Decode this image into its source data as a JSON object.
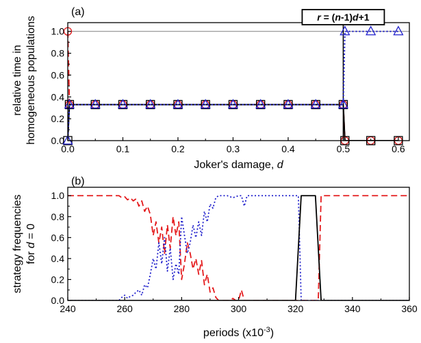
{
  "chart_data": [
    {
      "panel": "(a)",
      "type": "line",
      "xlabel": "Joker's damage, d",
      "xlabel_parts": [
        "Joker's damage, ",
        "d"
      ],
      "ylabel_lines": [
        "relative time in",
        "homogeneous populations"
      ],
      "xlim": [
        0,
        0.62
      ],
      "ylim": [
        0,
        1.08
      ],
      "xticks": [
        0.0,
        0.1,
        0.2,
        0.3,
        0.4,
        0.5,
        0.6
      ],
      "xtick_labels": [
        "0.0",
        "0.1",
        "0.2",
        "0.3",
        "0.4",
        "0.5",
        "0.6"
      ],
      "yticks": [
        0.0,
        0.2,
        0.4,
        0.6,
        0.8,
        1.0
      ],
      "ytick_labels": [
        "0.0",
        "0.2",
        "0.4",
        "0.6",
        "0.8",
        "1.0"
      ],
      "reference_lines": [
        {
          "orientation": "horizontal",
          "y": 1.0,
          "color": "#808080"
        },
        {
          "orientation": "vertical",
          "x": 0.5,
          "color": "#000000"
        }
      ],
      "annotation": {
        "x": 0.5,
        "parts": [
          "r",
          " = (",
          "n",
          "-1)",
          "d",
          "+1"
        ]
      },
      "series": [
        {
          "marker": "circle",
          "color": "#e41a1c",
          "dash": "dashed",
          "x": [
            0.0,
            0.003,
            0.05,
            0.1,
            0.15,
            0.2,
            0.25,
            0.3,
            0.35,
            0.4,
            0.45,
            0.5,
            0.503,
            0.55,
            0.6
          ],
          "y": [
            1.0,
            0.33,
            0.33,
            0.33,
            0.33,
            0.33,
            0.33,
            0.33,
            0.33,
            0.33,
            0.33,
            0.33,
            0.0,
            0.0,
            0.0
          ]
        },
        {
          "marker": "square",
          "color": "#000000",
          "dash": "solid",
          "x": [
            0.0,
            0.003,
            0.05,
            0.1,
            0.15,
            0.2,
            0.25,
            0.3,
            0.35,
            0.4,
            0.45,
            0.5,
            0.503,
            0.55,
            0.6
          ],
          "y": [
            0.0,
            0.33,
            0.33,
            0.33,
            0.33,
            0.33,
            0.33,
            0.33,
            0.33,
            0.33,
            0.33,
            0.33,
            0.0,
            0.0,
            0.0
          ]
        },
        {
          "marker": "triangle",
          "color": "#1f1fcc",
          "dash": "dotted",
          "x": [
            0.0,
            0.003,
            0.05,
            0.1,
            0.15,
            0.2,
            0.25,
            0.3,
            0.35,
            0.4,
            0.45,
            0.5,
            0.503,
            0.55,
            0.6
          ],
          "y": [
            0.0,
            0.33,
            0.33,
            0.33,
            0.33,
            0.33,
            0.33,
            0.33,
            0.33,
            0.33,
            0.33,
            0.33,
            1.0,
            1.0,
            1.0
          ]
        }
      ]
    },
    {
      "panel": "(b)",
      "type": "line",
      "xlabel": "periods (x10-3)",
      "xlabel_parts": [
        "periods (x10",
        "-3",
        ")"
      ],
      "ylabel_lines": [
        "strategy frequencies",
        "for d = 0"
      ],
      "ylabel_line2_parts": [
        "for ",
        "d",
        " = 0"
      ],
      "xlim": [
        240,
        360
      ],
      "ylim": [
        0,
        1.08
      ],
      "xticks": [
        240,
        260,
        280,
        300,
        320,
        340,
        360
      ],
      "xtick_labels": [
        "240",
        "260",
        "280",
        "300",
        "320",
        "340",
        "360"
      ],
      "yticks": [
        0.0,
        0.2,
        0.4,
        0.6,
        0.8,
        1.0
      ],
      "ytick_labels": [
        "0.0",
        "0.2",
        "0.4",
        "0.6",
        "0.8",
        "1.0"
      ],
      "series": [
        {
          "color": "#e41a1c",
          "dash": "dashed",
          "x": [
            240,
            258,
            259,
            260,
            261,
            262,
            263,
            264,
            265,
            266,
            267,
            268,
            269,
            270,
            271,
            272,
            273,
            274,
            275,
            276,
            277,
            278,
            279,
            280,
            281,
            282,
            283,
            284,
            285,
            286,
            287,
            288,
            289,
            290,
            291,
            292,
            293,
            295,
            297,
            298,
            299,
            300,
            301,
            302,
            303,
            320,
            321,
            322,
            328,
            329,
            330,
            360
          ],
          "y": [
            1.0,
            1.0,
            0.98,
            0.99,
            0.96,
            0.98,
            0.95,
            0.97,
            0.9,
            0.95,
            0.85,
            0.9,
            0.82,
            0.62,
            0.75,
            0.55,
            0.7,
            0.45,
            0.72,
            0.5,
            0.8,
            0.62,
            0.75,
            0.2,
            0.35,
            0.55,
            0.45,
            0.3,
            0.4,
            0.25,
            0.38,
            0.15,
            0.25,
            0.08,
            0.12,
            0.03,
            0.0,
            0.0,
            0.0,
            0.02,
            0.0,
            0.0,
            0.1,
            0.0,
            0.0,
            0.0,
            0.0,
            0.0,
            0.0,
            1.0,
            1.0,
            1.0
          ]
        },
        {
          "color": "#1f1fcc",
          "dash": "dotted",
          "x": [
            240,
            258,
            259,
            260,
            261,
            262,
            263,
            264,
            265,
            266,
            267,
            268,
            269,
            270,
            271,
            272,
            273,
            274,
            275,
            276,
            277,
            278,
            279,
            280,
            281,
            282,
            283,
            284,
            285,
            286,
            287,
            288,
            289,
            290,
            291,
            292,
            293,
            294,
            296,
            298,
            300,
            301,
            302,
            303,
            304,
            320,
            321,
            322,
            328,
            329,
            330,
            360
          ],
          "y": [
            0.0,
            0.0,
            0.03,
            0.05,
            0.02,
            0.04,
            0.05,
            0.08,
            0.1,
            0.05,
            0.15,
            0.12,
            0.25,
            0.4,
            0.3,
            0.55,
            0.35,
            0.6,
            0.28,
            0.5,
            0.2,
            0.35,
            0.25,
            0.8,
            0.62,
            0.45,
            0.55,
            0.72,
            0.6,
            0.75,
            0.62,
            0.85,
            0.75,
            0.92,
            0.88,
            0.98,
            1.0,
            1.0,
            1.0,
            0.98,
            1.0,
            1.0,
            0.9,
            1.0,
            1.0,
            1.0,
            1.0,
            0.0,
            0.0,
            0.0,
            0.0,
            0.0
          ]
        },
        {
          "color": "#000000",
          "dash": "solid",
          "x": [
            240,
            320,
            321,
            322,
            327,
            328,
            329,
            360
          ],
          "y": [
            0.0,
            0.0,
            0.5,
            1.0,
            1.0,
            0.5,
            0.0,
            0.0
          ]
        }
      ]
    }
  ]
}
